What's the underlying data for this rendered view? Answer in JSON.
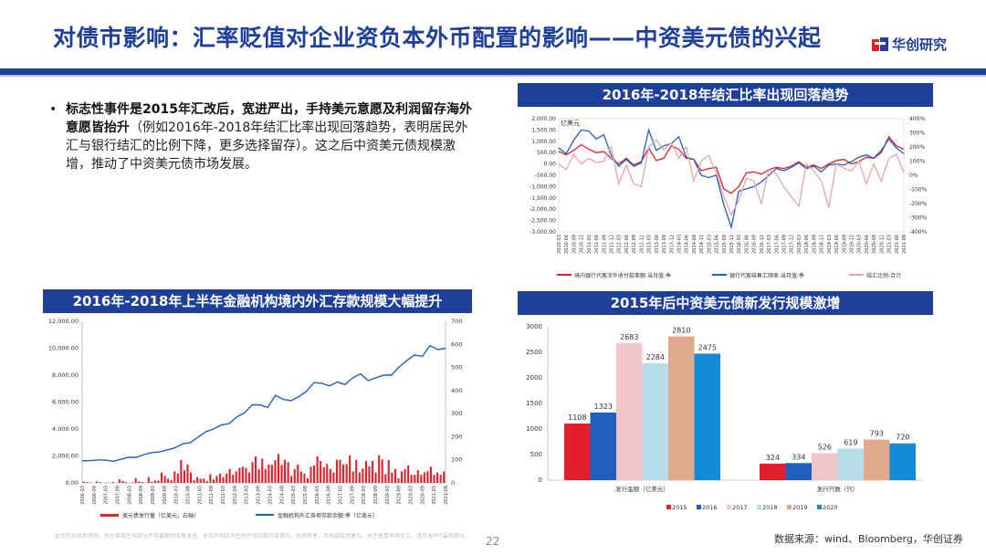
{
  "header": {
    "title": "对债市影响：汇率贬值对企业资负本外币配置的影响——中资美元债的兴起",
    "logo_text": "华创研究"
  },
  "bullet": {
    "bold": "标志性事件是2015年汇改后，宽进严出，手持美元意愿及利润留存海外意愿皆抬升",
    "normal": "（例如2016年-2018年结汇比率出现回落趋势，表明居民外汇与银行结汇的比例下降，更多选择留存）。这之后中资美元债规模激增，推动了中资美元债市场发展。"
  },
  "panels": {
    "top_right": "2016年-2018年结汇比率出现回落趋势",
    "bottom_left": "2016年-2018年上半年金融机构境内外汇存款规模大幅提升",
    "bottom_right": "2015年后中资美元债新发行规模激增"
  },
  "chart_data": [
    {
      "id": "settlement",
      "type": "line",
      "unit_label": "亿美元",
      "left_ticks": [
        "2,000.00",
        "1,500.00",
        "1,000.00",
        "500.00",
        "0.00",
        "-500.00",
        "-1,000.00",
        "-1,500.00",
        "-2,000.00",
        "-2,500.00",
        "-3,000.00"
      ],
      "right_ticks": [
        "400%",
        "300%",
        "200%",
        "100%",
        "0%",
        "-100%",
        "-200%",
        "-300%",
        "-400%"
      ],
      "ylim_left": [
        -3000,
        2000
      ],
      "ylim_right": [
        -400,
        400
      ],
      "x_labels": [
        "2010-03",
        "2010-06",
        "2010-09",
        "2010-12",
        "2011-03",
        "2011-06",
        "2011-09",
        "2011-12",
        "2012-03",
        "2012-06",
        "2012-09",
        "2012-12",
        "2013-03",
        "2013-06",
        "2013-09",
        "2013-12",
        "2014-03",
        "2014-06",
        "2014-09",
        "2014-12",
        "2015-03",
        "2015-06",
        "2015-09",
        "2015-12",
        "2016-03",
        "2016-06",
        "2016-09",
        "2016-12",
        "2017-03",
        "2017-06",
        "2017-09",
        "2017-12",
        "2018-03",
        "2018-06",
        "2018-09",
        "2018-12",
        "2019-03",
        "2019-06",
        "2019-09",
        "2019-12",
        "2020-03",
        "2020-06",
        "2020-09",
        "2020-12",
        "2021-03",
        "2021-06",
        "2021-09"
      ],
      "series": [
        {
          "name": "境内银行代客涉外收付款差额:当月值:季",
          "color": "#e2202b",
          "axis": "left",
          "values": [
            550,
            400,
            600,
            850,
            650,
            500,
            550,
            250,
            0,
            250,
            -50,
            100,
            700,
            150,
            250,
            800,
            650,
            250,
            200,
            -300,
            -200,
            -150,
            -1100,
            -1300,
            -1000,
            -400,
            -350,
            -450,
            -250,
            -150,
            -200,
            -100,
            100,
            -150,
            -50,
            -200,
            0,
            150,
            200,
            0,
            100,
            300,
            250,
            500,
            1200,
            800,
            650
          ]
        },
        {
          "name": "银行代客结售汇顺差:当月值:季",
          "color": "#1f5fbf",
          "axis": "left",
          "values": [
            700,
            450,
            1050,
            1500,
            1450,
            1100,
            1300,
            400,
            -100,
            200,
            -100,
            50,
            1500,
            600,
            800,
            900,
            1200,
            300,
            200,
            -500,
            -600,
            -500,
            -1800,
            -2800,
            -1200,
            -1100,
            -1000,
            -800,
            -500,
            -200,
            -300,
            -150,
            50,
            -200,
            -100,
            -350,
            -50,
            0,
            -50,
            100,
            300,
            400,
            250,
            600,
            1100,
            700,
            450
          ]
        },
        {
          "name": "结汇比例-合计",
          "color": "#e8a5a8",
          "axis": "right",
          "values": [
            80,
            40,
            150,
            80,
            120,
            90,
            100,
            200,
            -60,
            70,
            -60,
            -80,
            200,
            250,
            180,
            230,
            120,
            200,
            -40,
            100,
            140,
            20,
            -150,
            -280,
            -180,
            -20,
            -40,
            -200,
            40,
            10,
            -80,
            -150,
            -220,
            80,
            30,
            -40,
            -230,
            80,
            50,
            30,
            100,
            -60,
            80,
            -40,
            120,
            150,
            20
          ]
        }
      ]
    },
    {
      "id": "fx_deposits",
      "type": "bar+line",
      "left_ticks": [
        "12,000.00",
        "10,000.00",
        "8,000.00",
        "6,000.00",
        "4,000.00",
        "2,000.00",
        "0.00"
      ],
      "right_ticks": [
        "700",
        "600",
        "500",
        "400",
        "300",
        "200",
        "100",
        "0"
      ],
      "ylim_left": [
        0,
        12000
      ],
      "ylim_right": [
        0,
        700
      ],
      "x_labels": [
        "2006-03",
        "2006-09",
        "2007-03",
        "2007-09",
        "2008-03",
        "2008-09",
        "2009-03",
        "2009-09",
        "2010-03",
        "2010-09",
        "2011-03",
        "2011-09",
        "2012-03",
        "2012-09",
        "2013-03",
        "2013-09",
        "2014-03",
        "2014-09",
        "2015-03",
        "2015-09",
        "2016-03",
        "2016-09",
        "2017-03",
        "2017-09",
        "2018-03",
        "2018-09",
        "2019-03",
        "2019-09",
        "2020-03",
        "2020-09",
        "2021-03",
        "2021-09"
      ],
      "bar_series": {
        "name": "美元债发行量（亿美元，右轴）",
        "color": "#e2202b",
        "axis": "right",
        "values": [
          5,
          3,
          2,
          0,
          6,
          3,
          0,
          1,
          0,
          4,
          0,
          15,
          8,
          3,
          0,
          2,
          20,
          6,
          4,
          0,
          25,
          5,
          10,
          10,
          45,
          30,
          18,
          12,
          50,
          40,
          100,
          55,
          80,
          45,
          12,
          25,
          18,
          18,
          8,
          38,
          15,
          30,
          40,
          25,
          40,
          60,
          35,
          50,
          65,
          70,
          65,
          45,
          90,
          115,
          60,
          105,
          60,
          80,
          78,
          98,
          125,
          78,
          100,
          90,
          30,
          60,
          80,
          50,
          40,
          20,
          70,
          75,
          115,
          95,
          68,
          82,
          60,
          45,
          100,
          100,
          80,
          82,
          120,
          50,
          100,
          45,
          62,
          95,
          72,
          95,
          45,
          120,
          102,
          38,
          100,
          45,
          60,
          20,
          50,
          60,
          75,
          35,
          35,
          55,
          35,
          45,
          50,
          70,
          35,
          45,
          35,
          50
        ]
      },
      "line_series": {
        "name": "金融机构外汇各项存款余额:季（亿美元）",
        "color": "#1f5fbf",
        "axis": "left",
        "values": [
          1650,
          1650,
          1700,
          1700,
          1600,
          1750,
          1900,
          1900,
          2100,
          2250,
          2300,
          2450,
          2600,
          2900,
          3000,
          3400,
          3800,
          4000,
          4300,
          4400,
          4900,
          5200,
          5800,
          5800,
          5600,
          6500,
          6200,
          6100,
          6400,
          6800,
          7450,
          7400,
          7200,
          7500,
          7300,
          7800,
          8100,
          7600,
          7800,
          8000,
          8000,
          8600,
          9100,
          9500,
          9400,
          10200,
          9900,
          10000
        ]
      },
      "bar_legend": "美元债发行量（亿美元，右轴）",
      "line_legend": "金融机构外汇各项存款余额:季（亿美元）"
    },
    {
      "id": "usd_bonds",
      "type": "bar",
      "yticks": [
        "3000",
        "2500",
        "2000",
        "1500",
        "1000",
        "500",
        "0"
      ],
      "ylim": [
        0,
        3000
      ],
      "categories": [
        "发行金额（亿美元）",
        "发行只数（只）"
      ],
      "series": [
        {
          "name": "2015",
          "color": "#e2202b",
          "values": [
            1108,
            324
          ]
        },
        {
          "name": "2016",
          "color": "#1f5fbf",
          "values": [
            1323,
            334
          ]
        },
        {
          "name": "2017",
          "color": "#f2c5c8",
          "values": [
            2683,
            526
          ]
        },
        {
          "name": "2018",
          "color": "#b7dce9",
          "values": [
            2284,
            619
          ]
        },
        {
          "name": "2019",
          "color": "#e0a98c",
          "values": [
            2810,
            793
          ]
        },
        {
          "name": "2020",
          "color": "#138bd6",
          "values": [
            2475,
            720
          ]
        }
      ]
    }
  ],
  "footer": {
    "disclaimer": "此页包含机密资料，其全部或任何部分不可被复制或再发送，本页不构成对任何产品的要约或邀约。仅供参考，不构成投资建议。关于免责声明全文，请见本PPT最后部分。",
    "page_number": "22",
    "source": "数据来源：wind、Bloomberg，华创证券"
  }
}
